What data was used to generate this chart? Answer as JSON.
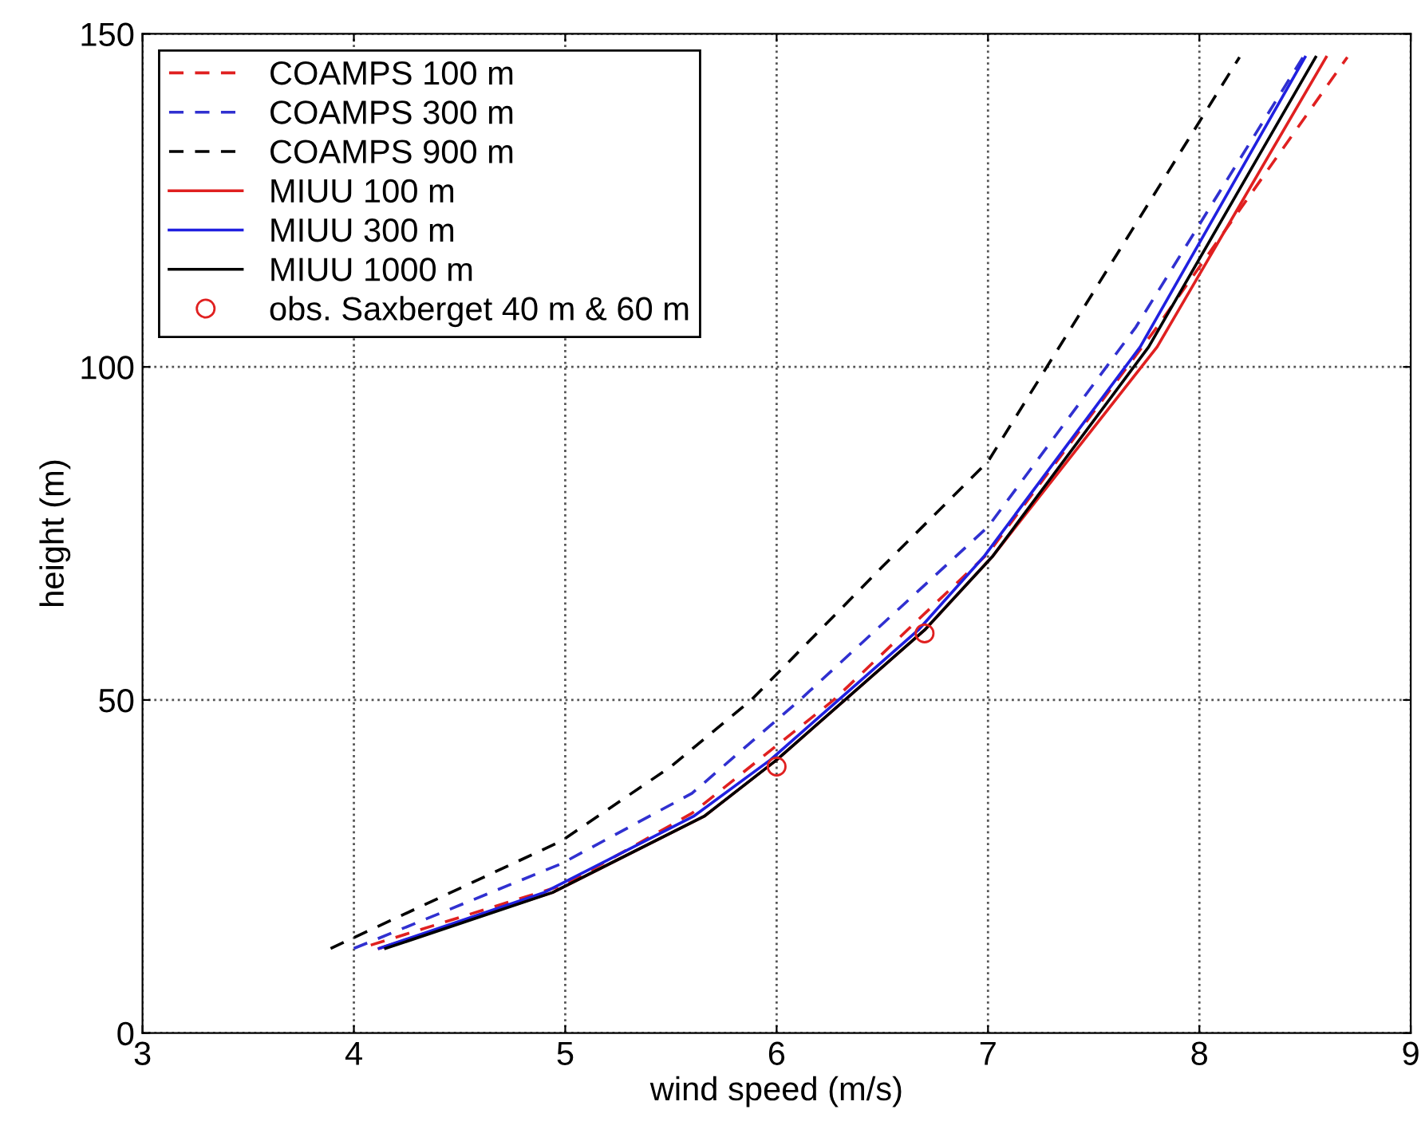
{
  "chart_data": {
    "type": "line",
    "xlabel": "wind speed (m/s)",
    "ylabel": "height (m)",
    "xlim": [
      3,
      9
    ],
    "ylim": [
      0,
      150
    ],
    "xticks": [
      3,
      4,
      5,
      6,
      7,
      8,
      9
    ],
    "yticks": [
      0,
      50,
      100,
      150
    ],
    "grid": true,
    "legend": "top left",
    "series": [
      {
        "name": "COAMPS 100 m",
        "color": "#e02020",
        "line_style": "dashed",
        "x": [
          4.08,
          5.0,
          5.6,
          6.27,
          7.0,
          7.8,
          8.7
        ],
        "values": [
          13.2,
          22.3,
          33,
          50,
          72,
          106,
          146.5
        ]
      },
      {
        "name": "COAMPS 300 m",
        "color": "#3030d0",
        "line_style": "dashed",
        "x": [
          4.0,
          4.98,
          5.6,
          6.11,
          7.0,
          7.7,
          8.49
        ],
        "values": [
          12.7,
          25.4,
          36,
          50,
          76,
          106,
          146.5
        ]
      },
      {
        "name": "COAMPS 900 m",
        "color": "#000000",
        "line_style": "dashed",
        "x": [
          3.89,
          4.98,
          5.5,
          5.88,
          6.5,
          7.0,
          8.19
        ],
        "values": [
          12.7,
          28.8,
          40,
          50,
          70,
          85.8,
          146.5
        ]
      },
      {
        "name": "MIUU 100 m",
        "color": "#e02020",
        "line_style": "solid",
        "x": [
          4.12,
          4.94,
          5.66,
          6.0,
          6.7,
          7.02,
          7.8,
          8.6
        ],
        "values": [
          12.7,
          21.1,
          32.6,
          41,
          60.5,
          71.5,
          103,
          146.5
        ]
      },
      {
        "name": "MIUU 300 m",
        "color": "#2020e0",
        "line_style": "solid",
        "x": [
          4.12,
          4.9,
          5.61,
          5.97,
          6.67,
          6.98,
          7.72,
          8.5
        ],
        "values": [
          12.7,
          21.1,
          32.6,
          41,
          60.5,
          71.5,
          103,
          146.5
        ]
      },
      {
        "name": "MIUU 1000 m",
        "color": "#000000",
        "line_style": "solid",
        "x": [
          4.15,
          4.94,
          5.66,
          6.0,
          6.7,
          7.02,
          7.76,
          8.55
        ],
        "values": [
          12.7,
          21.1,
          32.6,
          41,
          60.5,
          71.5,
          103,
          146.5
        ]
      },
      {
        "name": "obs. Saxberget 40 m & 60 m",
        "color": "#e02020",
        "type": "scatter",
        "marker": "circle",
        "x": [
          6.0,
          6.7
        ],
        "values": [
          40,
          60
        ]
      }
    ]
  }
}
